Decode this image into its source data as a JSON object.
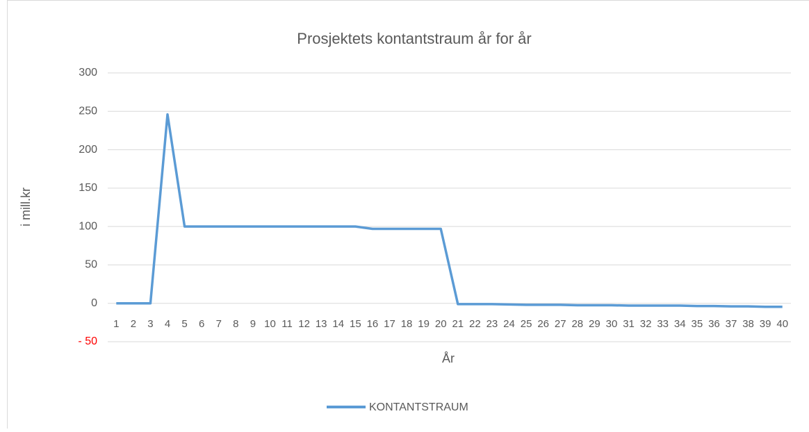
{
  "chart_data": {
    "type": "line",
    "title": "Prosjektets kontantstraum år for år",
    "x_label": "År",
    "y_label": "i mill.kr",
    "categories": [
      1,
      2,
      3,
      4,
      5,
      6,
      7,
      8,
      9,
      10,
      11,
      12,
      13,
      14,
      15,
      16,
      17,
      18,
      19,
      20,
      21,
      22,
      23,
      24,
      25,
      26,
      27,
      28,
      29,
      30,
      31,
      32,
      33,
      34,
      35,
      36,
      37,
      38,
      39,
      40
    ],
    "series": [
      {
        "name": "KONTANTSTRAUM",
        "color": "#5b9bd5",
        "values": [
          0,
          0,
          0,
          246,
          100,
          100,
          100,
          100,
          100,
          100,
          100,
          100,
          100,
          100,
          100,
          97,
          97,
          97,
          97,
          97,
          -1,
          -1,
          -1,
          -1.5,
          -2,
          -2,
          -2,
          -2.5,
          -2.5,
          -2.5,
          -3,
          -3,
          -3,
          -3,
          -3.5,
          -3.5,
          -4,
          -4,
          -4.5,
          -4.5
        ]
      }
    ],
    "ylim": [
      -50,
      300
    ],
    "yticks": [
      {
        "value": -50,
        "label": "- 50"
      },
      0,
      50,
      100,
      150,
      200,
      250,
      300
    ],
    "negative_tick_color": "#ff0000",
    "grid": true,
    "legend": "bottom"
  }
}
